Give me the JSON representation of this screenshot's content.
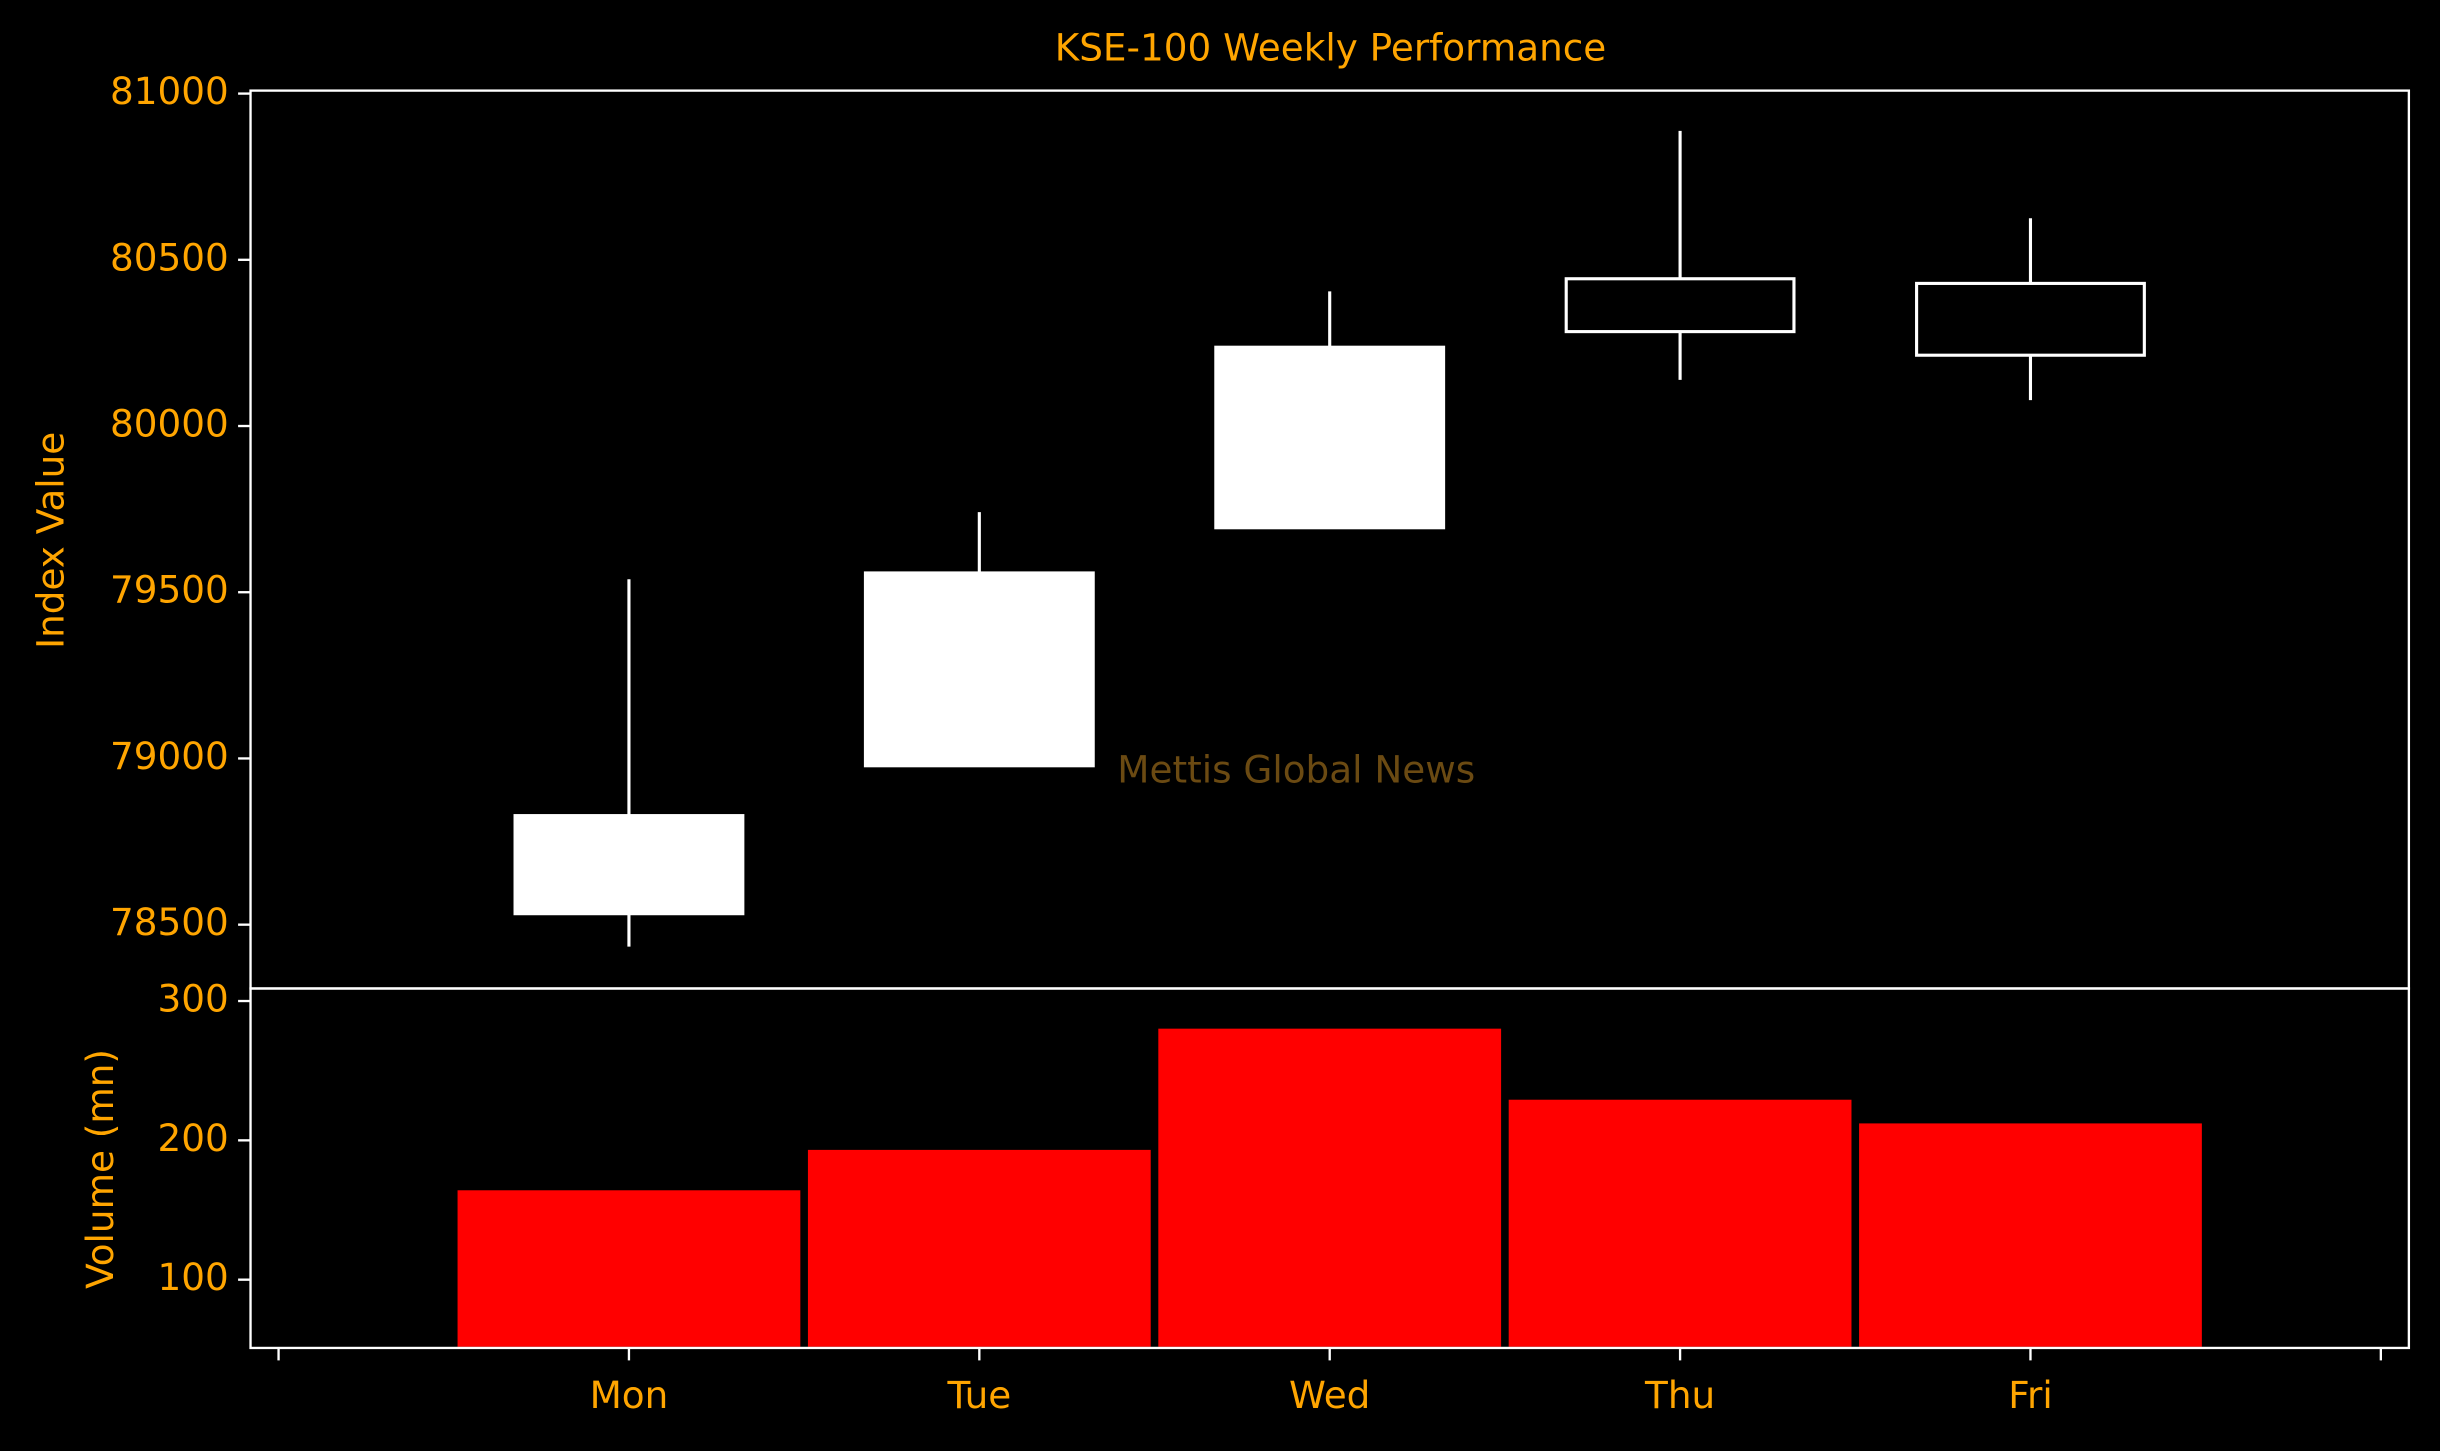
{
  "chart_data": [
    {
      "type": "candlestick",
      "title": "KSE-100 Weekly Performance",
      "ylabel": "Index Value",
      "annotation": "Mettis Global News",
      "categories": [
        null,
        "Mon",
        "Tue",
        "Wed",
        "Thu",
        "Fri",
        null
      ],
      "open": [
        null,
        78533,
        78978,
        79694,
        80443,
        80429,
        null
      ],
      "high": [
        null,
        79539,
        79741,
        80405,
        80888,
        80625,
        null
      ],
      "low": [
        null,
        78434,
        78978,
        79694,
        80139,
        80078,
        null
      ],
      "close": [
        null,
        78828,
        79558,
        80237,
        80284,
        80213,
        null
      ],
      "up_color": "#ffffff",
      "down_color": "#000000",
      "edge_color": "#ffffff",
      "ylim": [
        78308,
        81009
      ],
      "yticks": [
        78500,
        79000,
        79500,
        80000,
        80500,
        81000
      ]
    },
    {
      "type": "bar",
      "ylabel": "Volume (mn)",
      "categories": [
        null,
        "Mon",
        "Tue",
        "Wed",
        "Thu",
        "Fri",
        null
      ],
      "values": [
        null,
        165,
        194,
        281,
        230,
        213,
        null
      ],
      "color": "#ff0000",
      "ylim": [
        51,
        309
      ],
      "yticks": [
        100,
        200,
        300
      ]
    }
  ]
}
